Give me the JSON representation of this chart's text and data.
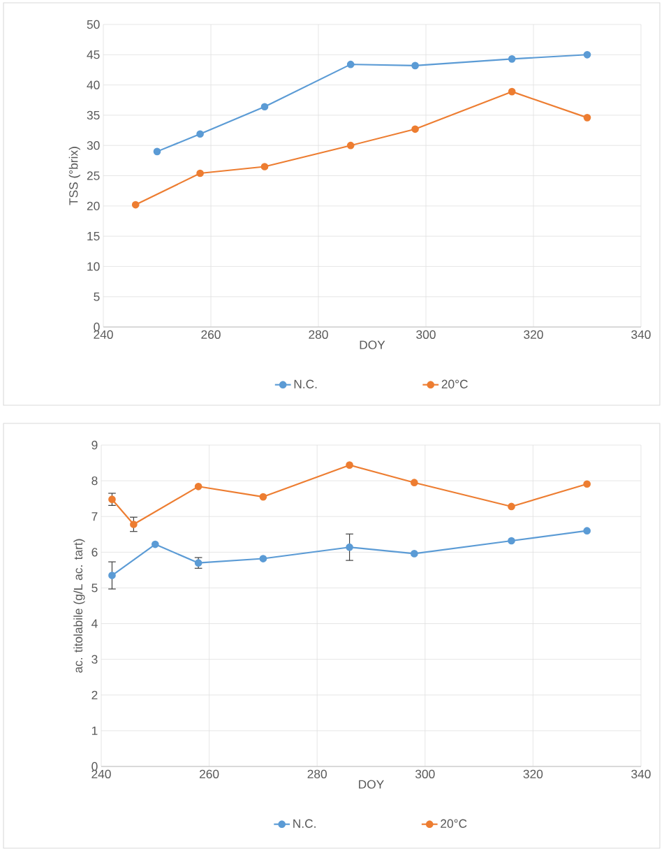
{
  "chart_data": [
    {
      "type": "line",
      "xlabel": "DOY",
      "ylabel": "TSS (°brix)",
      "xlim": [
        240,
        340
      ],
      "ylim": [
        0,
        50
      ],
      "xticks": [
        240,
        260,
        280,
        300,
        320,
        340
      ],
      "yticks": [
        0,
        5,
        10,
        15,
        20,
        25,
        30,
        35,
        40,
        45,
        50
      ],
      "grid": true,
      "legend": "bottom",
      "marker": "circle",
      "line_style": "solid",
      "series": [
        {
          "name": "N.C.",
          "color": "#5b9bd5",
          "x": [
            250,
            258,
            270,
            286,
            298,
            316,
            330
          ],
          "values": [
            29.0,
            31.9,
            36.4,
            43.4,
            43.2,
            44.3,
            45.0
          ]
        },
        {
          "name": "20°C",
          "color": "#ed7d31",
          "x": [
            246,
            258,
            270,
            286,
            298,
            316,
            330
          ],
          "values": [
            20.2,
            25.4,
            26.5,
            30.0,
            32.7,
            38.9,
            34.6
          ]
        }
      ]
    },
    {
      "type": "line",
      "xlabel": "DOY",
      "ylabel": "ac. titolabile (g/L ac. tart)",
      "xlim": [
        240,
        340
      ],
      "ylim": [
        0,
        9
      ],
      "xticks": [
        240,
        260,
        280,
        300,
        320,
        340
      ],
      "yticks": [
        0,
        1,
        2,
        3,
        4,
        5,
        6,
        7,
        8,
        9
      ],
      "grid": true,
      "legend": "bottom",
      "marker": "circle",
      "line_style": "solid",
      "series": [
        {
          "name": "N.C.",
          "color": "#5b9bd5",
          "x": [
            242,
            250,
            258,
            270,
            286,
            298,
            316,
            330
          ],
          "values": [
            5.35,
            6.22,
            5.7,
            5.82,
            6.14,
            5.96,
            6.32,
            6.6
          ],
          "errors": [
            0.38,
            null,
            0.15,
            null,
            0.37,
            null,
            null,
            null
          ]
        },
        {
          "name": "20°C",
          "color": "#ed7d31",
          "x": [
            242,
            246,
            258,
            270,
            286,
            298,
            316,
            330
          ],
          "values": [
            7.48,
            6.78,
            7.84,
            7.55,
            8.44,
            7.95,
            7.28,
            7.91
          ],
          "errors": [
            0.17,
            0.2,
            null,
            null,
            null,
            null,
            null,
            null
          ]
        }
      ]
    }
  ]
}
